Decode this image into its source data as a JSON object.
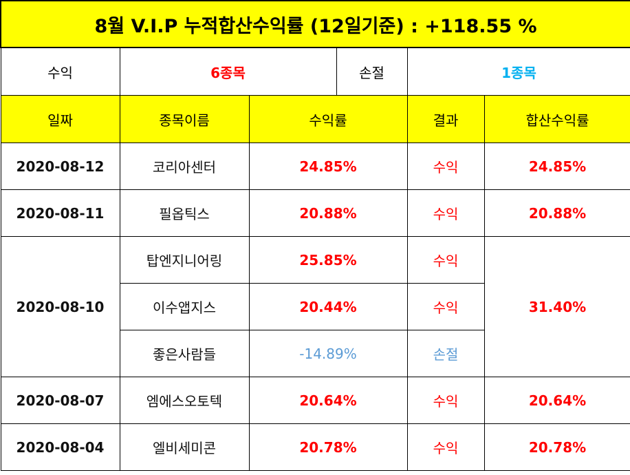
{
  "title": "8월 V.I.P 누적합산수익률 (12일기준) : +118.55 %",
  "summary": {
    "profit_label": "수익",
    "profit_value": "6종목",
    "loss_label": "손절",
    "loss_value": "1종목"
  },
  "headers": {
    "date": "일짜",
    "stock": "종목이름",
    "rate": "수익률",
    "result": "결과",
    "combined": "합산수익률"
  },
  "rows": [
    {
      "date": "2020-08-12",
      "stock": "코리아센터",
      "rate": "24.85%",
      "result": "수익",
      "combined": "24.85%"
    },
    {
      "date": "2020-08-11",
      "stock": "필옵틱스",
      "rate": "20.88%",
      "result": "수익",
      "combined": "20.88%"
    },
    {
      "date": "2020-08-10",
      "stock": "탑엔지니어링",
      "rate": "25.85%",
      "result": "수익",
      "combined": "31.40%"
    },
    {
      "stock": "이수앱지스",
      "rate": "20.44%",
      "result": "수익"
    },
    {
      "stock": "좋은사람들",
      "rate": "-14.89%",
      "result": "손절"
    },
    {
      "date": "2020-08-07",
      "stock": "엠에스오토텍",
      "rate": "20.64%",
      "result": "수익",
      "combined": "20.64%"
    },
    {
      "date": "2020-08-04",
      "stock": "엘비세미콘",
      "rate": "20.78%",
      "result": "수익",
      "combined": "20.78%"
    }
  ],
  "colors": {
    "header_bg": "#ffff00",
    "profit_text": "#ff0000",
    "loss_summary_text": "#00b0f0",
    "loss_row_text": "#5b9bd5"
  }
}
